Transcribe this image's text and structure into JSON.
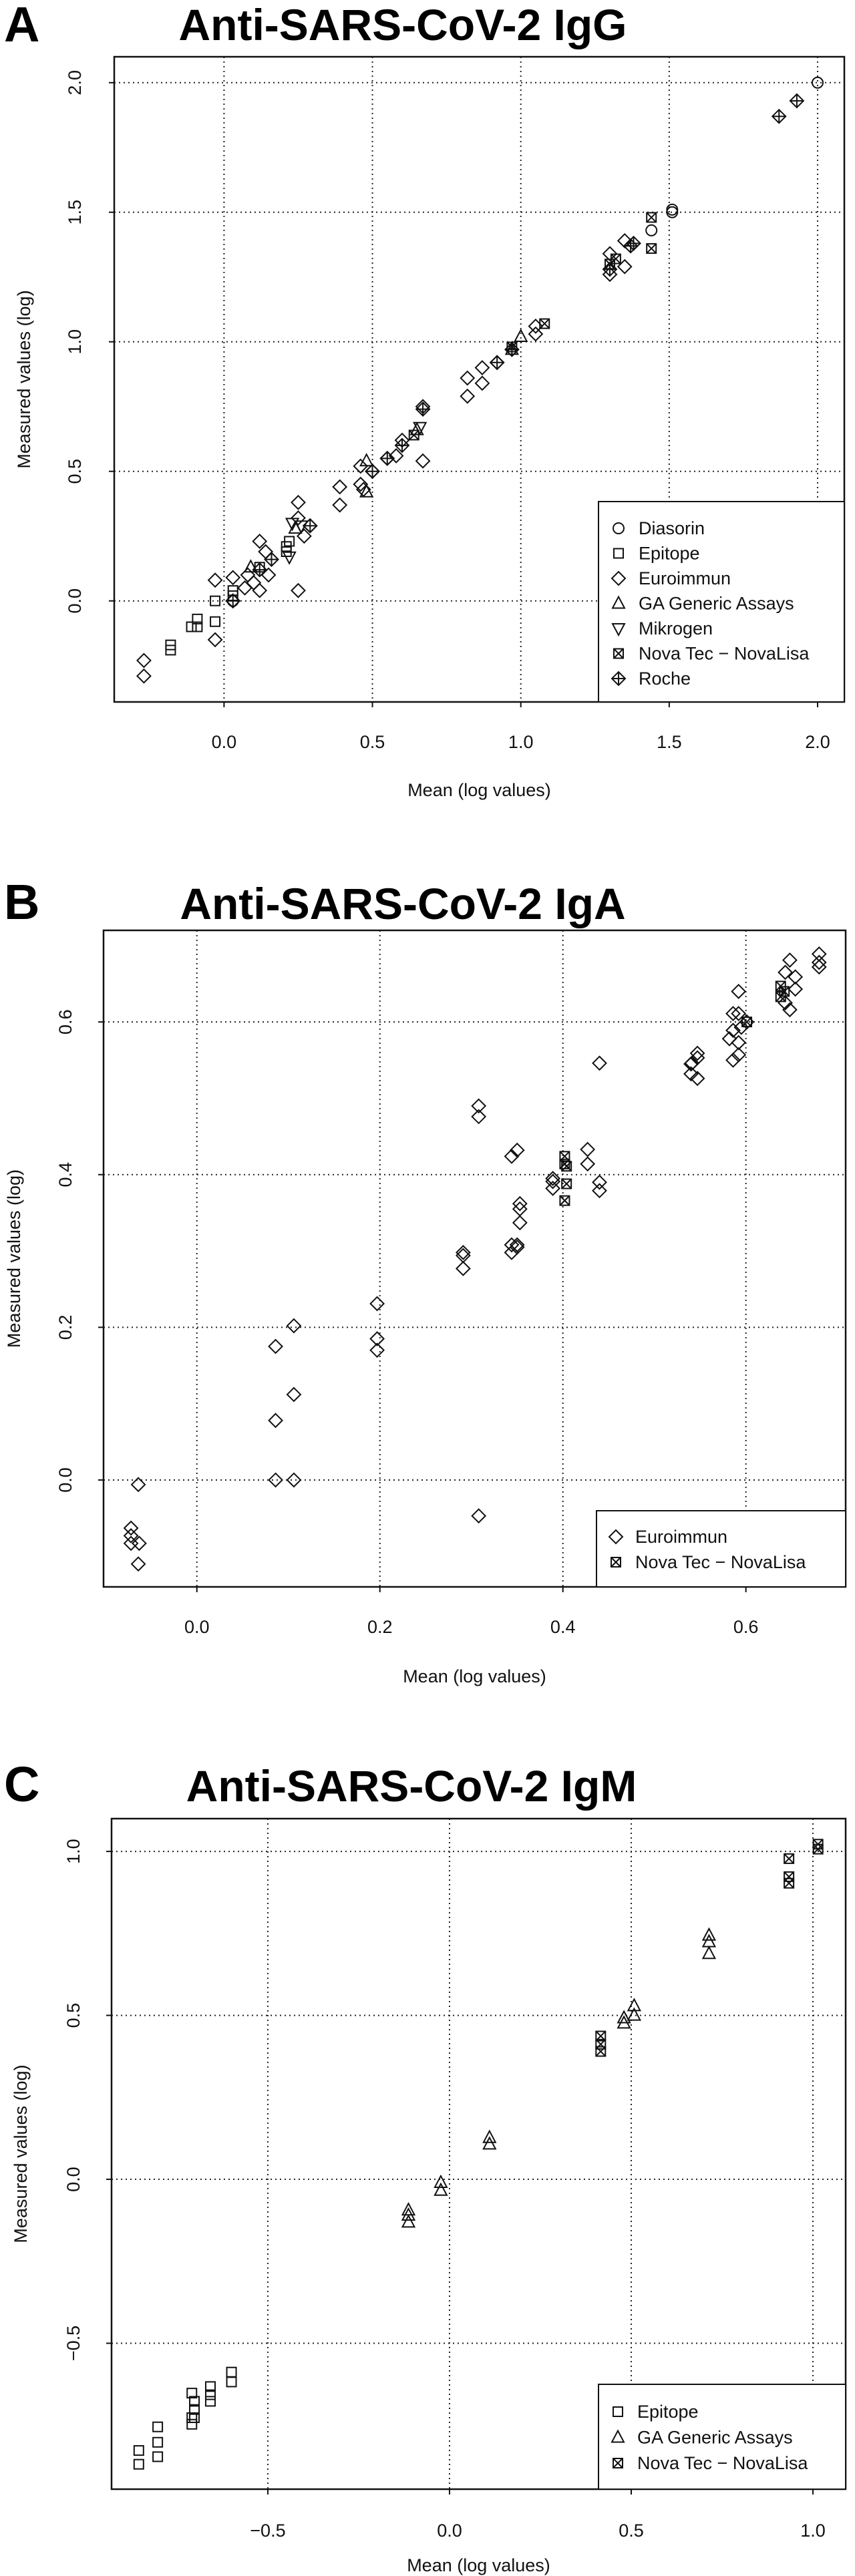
{
  "chart_data": [
    {
      "type": "scatter",
      "panel": "A",
      "title": "Anti-SARS-CoV-2 IgG",
      "xlabel": "Mean (log values)",
      "ylabel": "Measured values (log)",
      "xlim": [
        -0.37,
        2.09
      ],
      "ylim": [
        -0.39,
        2.1
      ],
      "xticks": [
        0,
        0.5,
        1,
        1.5,
        2
      ],
      "xtick_labels": [
        "0.0",
        "0.5",
        "1.0",
        "1.5",
        "2.0"
      ],
      "yticks": [
        0,
        0.5,
        1,
        1.5,
        2
      ],
      "ytick_labels": [
        "0.0",
        "0.5",
        "1.0",
        "1.5",
        "2.0"
      ],
      "grid": true,
      "legend_position": "bottom-right",
      "series": [
        {
          "name": "Diasorin",
          "marker": "circle",
          "points": [
            [
              2.0,
              2.0
            ],
            [
              1.51,
              1.51
            ],
            [
              1.51,
              1.5
            ],
            [
              1.44,
              1.43
            ],
            [
              0.03,
              0.0
            ]
          ]
        },
        {
          "name": "Epitope",
          "marker": "square",
          "points": [
            [
              -0.18,
              -0.17
            ],
            [
              -0.18,
              -0.19
            ],
            [
              -0.11,
              -0.1
            ],
            [
              -0.09,
              -0.07
            ],
            [
              -0.09,
              -0.1
            ],
            [
              -0.03,
              -0.08
            ],
            [
              -0.03,
              0.0
            ],
            [
              0.03,
              0.04
            ],
            [
              0.03,
              0.02
            ],
            [
              0.12,
              0.13
            ],
            [
              0.21,
              0.21
            ],
            [
              0.21,
              0.19
            ],
            [
              0.22,
              0.23
            ]
          ]
        },
        {
          "name": "Euroimmun",
          "marker": "diamond",
          "points": [
            [
              -0.27,
              -0.23
            ],
            [
              -0.27,
              -0.29
            ],
            [
              -0.03,
              -0.15
            ],
            [
              -0.03,
              0.08
            ],
            [
              0.03,
              0.09
            ],
            [
              0.03,
              0.0
            ],
            [
              0.07,
              0.05
            ],
            [
              0.08,
              0.1
            ],
            [
              0.1,
              0.07
            ],
            [
              0.12,
              0.23
            ],
            [
              0.12,
              0.04
            ],
            [
              0.14,
              0.19
            ],
            [
              0.15,
              0.1
            ],
            [
              0.25,
              0.38
            ],
            [
              0.25,
              0.32
            ],
            [
              0.25,
              0.04
            ],
            [
              0.27,
              0.25
            ],
            [
              0.29,
              0.29
            ],
            [
              0.39,
              0.44
            ],
            [
              0.39,
              0.37
            ],
            [
              0.46,
              0.52
            ],
            [
              0.46,
              0.45
            ],
            [
              0.47,
              0.43
            ],
            [
              0.5,
              0.5
            ],
            [
              0.55,
              0.55
            ],
            [
              0.58,
              0.56
            ],
            [
              0.6,
              0.62
            ],
            [
              0.67,
              0.75
            ],
            [
              0.67,
              0.54
            ],
            [
              0.82,
              0.86
            ],
            [
              0.82,
              0.79
            ],
            [
              0.87,
              0.9
            ],
            [
              0.87,
              0.84
            ],
            [
              0.92,
              0.92
            ],
            [
              1.05,
              1.06
            ],
            [
              1.05,
              1.03
            ],
            [
              1.3,
              1.34
            ],
            [
              1.3,
              1.26
            ],
            [
              1.35,
              1.39
            ],
            [
              1.35,
              1.29
            ]
          ]
        },
        {
          "name": "GA Generic Assays",
          "marker": "triangle",
          "points": [
            [
              0.09,
              0.13
            ],
            [
              0.24,
              0.28
            ],
            [
              0.48,
              0.54
            ],
            [
              0.48,
              0.42
            ],
            [
              0.65,
              0.66
            ],
            [
              1.0,
              1.02
            ],
            [
              0.97,
              0.97
            ]
          ]
        },
        {
          "name": "Mikrogen",
          "marker": "triangle-down",
          "points": [
            [
              0.23,
              0.3
            ],
            [
              0.22,
              0.17
            ],
            [
              0.66,
              0.67
            ],
            [
              0.26,
              0.29
            ]
          ]
        },
        {
          "name": "Nova Tec − NovaLisa",
          "marker": "square-x",
          "points": [
            [
              1.44,
              1.48
            ],
            [
              1.44,
              1.36
            ],
            [
              1.08,
              1.07
            ],
            [
              1.3,
              1.3
            ],
            [
              1.32,
              1.32
            ],
            [
              0.64,
              0.64
            ],
            [
              0.97,
              0.98
            ]
          ]
        },
        {
          "name": "Roche",
          "marker": "diamond-plus",
          "points": [
            [
              1.87,
              1.87
            ],
            [
              1.93,
              1.93
            ],
            [
              1.38,
              1.38
            ],
            [
              1.37,
              1.37
            ],
            [
              0.03,
              0.0
            ],
            [
              0.16,
              0.16
            ],
            [
              0.29,
              0.29
            ],
            [
              0.55,
              0.55
            ],
            [
              0.6,
              0.6
            ],
            [
              0.67,
              0.74
            ],
            [
              0.92,
              0.92
            ],
            [
              0.97,
              0.97
            ],
            [
              0.12,
              0.12
            ],
            [
              0.5,
              0.5
            ],
            [
              1.3,
              1.28
            ]
          ]
        }
      ]
    },
    {
      "type": "scatter",
      "panel": "B",
      "title": "Anti-SARS-CoV-2 IgA",
      "xlabel": "Mean (log values)",
      "ylabel": "Measured values (log)",
      "xlim": [
        -0.102,
        0.709
      ],
      "ylim": [
        -0.14,
        0.72
      ],
      "xticks": [
        0,
        0.2,
        0.4,
        0.6
      ],
      "xtick_labels": [
        "0.0",
        "0.2",
        "0.4",
        "0.6"
      ],
      "yticks": [
        0,
        0.2,
        0.4,
        0.6
      ],
      "ytick_labels": [
        "0.0",
        "0.2",
        "0.4",
        "0.6"
      ],
      "grid": true,
      "legend_position": "bottom-right",
      "series": [
        {
          "name": "Euroimmun",
          "marker": "diamond",
          "points": [
            [
              -0.072,
              -0.063
            ],
            [
              -0.072,
              -0.083
            ],
            [
              -0.063,
              -0.083
            ],
            [
              -0.072,
              -0.073
            ],
            [
              -0.064,
              -0.006
            ],
            [
              -0.064,
              -0.11
            ],
            [
              0.086,
              0.175
            ],
            [
              0.086,
              0.078
            ],
            [
              0.086,
              0.0
            ],
            [
              0.106,
              0.202
            ],
            [
              0.106,
              0.112
            ],
            [
              0.106,
              0.0
            ],
            [
              0.197,
              0.231
            ],
            [
              0.197,
              0.185
            ],
            [
              0.197,
              0.17
            ],
            [
              0.291,
              0.298
            ],
            [
              0.291,
              0.294
            ],
            [
              0.291,
              0.277
            ],
            [
              0.308,
              0.49
            ],
            [
              0.308,
              0.476
            ],
            [
              0.308,
              -0.047
            ],
            [
              0.344,
              0.424
            ],
            [
              0.35,
              0.432
            ],
            [
              0.353,
              0.362
            ],
            [
              0.353,
              0.355
            ],
            [
              0.353,
              0.337
            ],
            [
              0.344,
              0.308
            ],
            [
              0.344,
              0.298
            ],
            [
              0.35,
              0.308
            ],
            [
              0.35,
              0.305
            ],
            [
              0.389,
              0.391
            ],
            [
              0.389,
              0.382
            ],
            [
              0.389,
              0.395
            ],
            [
              0.427,
              0.433
            ],
            [
              0.427,
              0.414
            ],
            [
              0.44,
              0.39
            ],
            [
              0.44,
              0.379
            ],
            [
              0.44,
              0.546
            ],
            [
              0.54,
              0.545
            ],
            [
              0.54,
              0.532
            ],
            [
              0.547,
              0.559
            ],
            [
              0.547,
              0.553
            ],
            [
              0.547,
              0.526
            ],
            [
              0.541,
              0.546
            ],
            [
              0.586,
              0.55
            ],
            [
              0.592,
              0.557
            ],
            [
              0.592,
              0.573
            ],
            [
              0.582,
              0.578
            ],
            [
              0.586,
              0.589
            ],
            [
              0.586,
              0.611
            ],
            [
              0.592,
              0.64
            ],
            [
              0.592,
              0.611
            ],
            [
              0.601,
              0.6
            ],
            [
              0.595,
              0.593
            ],
            [
              0.648,
              0.681
            ],
            [
              0.643,
              0.665
            ],
            [
              0.654,
              0.659
            ],
            [
              0.654,
              0.643
            ],
            [
              0.648,
              0.616
            ],
            [
              0.643,
              0.625
            ],
            [
              0.68,
              0.689
            ],
            [
              0.68,
              0.678
            ],
            [
              0.68,
              0.672
            ]
          ]
        },
        {
          "name": "Nova Tec − NovaLisa",
          "marker": "square-x",
          "points": [
            [
              0.402,
              0.424
            ],
            [
              0.402,
              0.414
            ],
            [
              0.404,
              0.411
            ],
            [
              0.404,
              0.388
            ],
            [
              0.402,
              0.366
            ],
            [
              0.601,
              0.6
            ],
            [
              0.638,
              0.647
            ],
            [
              0.638,
              0.633
            ],
            [
              0.642,
              0.64
            ]
          ]
        }
      ]
    },
    {
      "type": "scatter",
      "panel": "C",
      "title": "Anti-SARS-CoV-2 IgM",
      "xlabel": "Mean (log values)",
      "ylabel": "Measured values (log)",
      "xlim": [
        -0.93,
        1.09
      ],
      "ylim": [
        -0.945,
        1.1
      ],
      "xticks": [
        -0.5,
        0,
        0.5,
        1
      ],
      "xtick_labels": [
        "−0.5",
        "0.0",
        "0.5",
        "1.0"
      ],
      "yticks": [
        -0.5,
        0,
        0.5,
        1
      ],
      "ytick_labels": [
        "−0.5",
        "0.0",
        "0.5",
        "1.0"
      ],
      "grid": true,
      "legend_position": "bottom-right",
      "series": [
        {
          "name": "Epitope",
          "marker": "square",
          "points": [
            [
              -0.855,
              -0.827
            ],
            [
              -0.855,
              -0.869
            ],
            [
              -0.803,
              -0.755
            ],
            [
              -0.803,
              -0.802
            ],
            [
              -0.803,
              -0.846
            ],
            [
              -0.709,
              -0.652
            ],
            [
              -0.709,
              -0.727
            ],
            [
              -0.709,
              -0.747
            ],
            [
              -0.702,
              -0.677
            ],
            [
              -0.702,
              -0.702
            ],
            [
              -0.702,
              -0.727
            ],
            [
              -0.658,
              -0.632
            ],
            [
              -0.658,
              -0.657
            ],
            [
              -0.658,
              -0.677
            ],
            [
              -0.6,
              -0.588
            ],
            [
              -0.6,
              -0.618
            ]
          ]
        },
        {
          "name": "GA Generic Assays",
          "marker": "triangle",
          "points": [
            [
              -0.113,
              -0.094
            ],
            [
              -0.113,
              -0.11
            ],
            [
              -0.113,
              -0.131
            ],
            [
              -0.024,
              -0.01
            ],
            [
              -0.024,
              -0.034
            ],
            [
              0.11,
              0.127
            ],
            [
              0.11,
              0.107
            ],
            [
              0.48,
              0.492
            ],
            [
              0.48,
              0.476
            ],
            [
              0.508,
              0.529
            ],
            [
              0.508,
              0.5
            ],
            [
              0.714,
              0.744
            ],
            [
              0.714,
              0.724
            ],
            [
              0.714,
              0.688
            ]
          ]
        },
        {
          "name": "Nova Tec − NovaLisa",
          "marker": "square-x",
          "points": [
            [
              0.416,
              0.437
            ],
            [
              0.416,
              0.412
            ],
            [
              0.416,
              0.39
            ],
            [
              0.934,
              0.978
            ],
            [
              0.934,
              0.923
            ],
            [
              0.934,
              0.903
            ],
            [
              1.014,
              1.022
            ],
            [
              1.014,
              1.007
            ]
          ]
        }
      ]
    }
  ]
}
